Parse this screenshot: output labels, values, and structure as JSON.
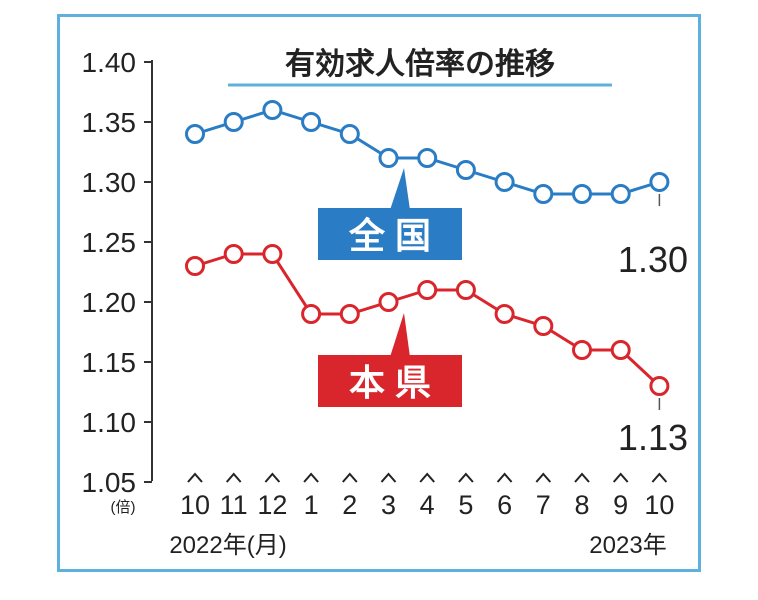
{
  "chart_data": {
    "type": "line",
    "title": "有効求人倍率の推移",
    "y_unit": "(倍)",
    "ylim": [
      1.05,
      1.4
    ],
    "y_ticks": [
      "1.40",
      "1.35",
      "1.30",
      "1.25",
      "1.20",
      "1.15",
      "1.10",
      "1.05"
    ],
    "x": [
      "10",
      "11",
      "12",
      "1",
      "2",
      "3",
      "4",
      "5",
      "6",
      "7",
      "8",
      "9",
      "10"
    ],
    "x_year_start": "2022年(月)",
    "x_year_end": "2023年",
    "grid": false,
    "series": [
      {
        "name": "全 国",
        "color": "#2a7cc4",
        "values": [
          1.34,
          1.35,
          1.36,
          1.35,
          1.34,
          1.32,
          1.32,
          1.31,
          1.3,
          1.29,
          1.29,
          1.29,
          1.3
        ],
        "end_label": "1.30"
      },
      {
        "name": "本 県",
        "color": "#d9262c",
        "values": [
          1.23,
          1.24,
          1.24,
          1.19,
          1.19,
          1.2,
          1.21,
          1.21,
          1.19,
          1.18,
          1.16,
          1.16,
          1.13
        ],
        "end_label": "1.13"
      }
    ]
  }
}
